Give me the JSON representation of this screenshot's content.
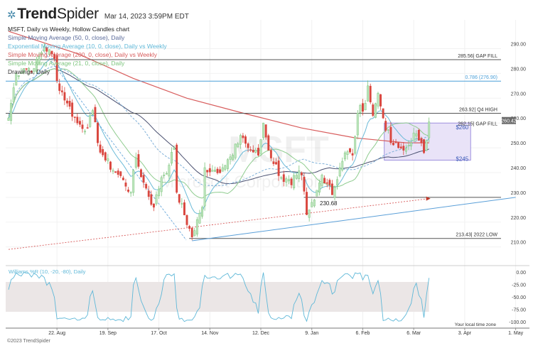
{
  "header": {
    "brand": "TrendSpider",
    "timestamp": "Mar 14, 2023 3:59PM EDT"
  },
  "legend": [
    {
      "label": "MSFT, Daily vs Weekly, Hollow Candles chart",
      "color": "#222222"
    },
    {
      "label": "Simple Moving Average (50, 0, close), Daily",
      "color": "#5a6a9a"
    },
    {
      "label": "Exponential Moving Average (10, 0, close), Daily vs Weekly",
      "color": "#5fb8d8"
    },
    {
      "label": "Simple Moving Average (200, 0, close), Daily vs Weekly",
      "color": "#d85c5c"
    },
    {
      "label": "Simple Moving Average (21, 0, close), Daily",
      "color": "#7cc47c"
    },
    {
      "label": "Drawings, Daily",
      "color": "#333333"
    }
  ],
  "watermark": {
    "symbol": "MSFT",
    "name": "Microsoft Corporation"
  },
  "footer": {
    "copyright": "©2023 TrendSpider",
    "timezone_note": "Your local time zone"
  },
  "chart_data": {
    "type": "candlestick",
    "symbol": "MSFT",
    "ylim": [
      207,
      295
    ],
    "y_ticks": [
      "290.00",
      "280.00",
      "270.00",
      "260.00",
      "250.00",
      "240.00",
      "230.00",
      "220.00",
      "210.00"
    ],
    "x_ticks": [
      {
        "label": "22. Aug",
        "date": "2022-08-22"
      },
      {
        "label": "19. Sep",
        "date": "2022-09-19"
      },
      {
        "label": "17. Oct",
        "date": "2022-10-17"
      },
      {
        "label": "14. Nov",
        "date": "2022-11-14"
      },
      {
        "label": "12. Dec",
        "date": "2022-12-12"
      },
      {
        "label": "9. Jan",
        "date": "2023-01-09"
      },
      {
        "label": "6. Feb",
        "date": "2023-02-06"
      },
      {
        "label": "6. Mar",
        "date": "2023-03-06"
      },
      {
        "label": "3. Apr",
        "date": "2023-04-03"
      },
      {
        "label": "1. May",
        "date": "2023-05-01"
      }
    ],
    "grid": true,
    "last_price": "260.42",
    "approx_closes": [
      [
        "2022-07-26",
        262
      ],
      [
        "2022-07-29",
        280
      ],
      [
        "2022-08-03",
        282
      ],
      [
        "2022-08-09",
        282
      ],
      [
        "2022-08-15",
        291
      ],
      [
        "2022-08-19",
        286
      ],
      [
        "2022-08-22",
        277
      ],
      [
        "2022-08-26",
        268
      ],
      [
        "2022-09-01",
        260
      ],
      [
        "2022-09-07",
        258
      ],
      [
        "2022-09-09",
        265
      ],
      [
        "2022-09-13",
        252
      ],
      [
        "2022-09-16",
        245
      ],
      [
        "2022-09-22",
        240
      ],
      [
        "2022-09-27",
        237
      ],
      [
        "2022-09-30",
        232
      ],
      [
        "2022-10-04",
        246
      ],
      [
        "2022-10-07",
        236
      ],
      [
        "2022-10-13",
        226
      ],
      [
        "2022-10-18",
        238
      ],
      [
        "2022-10-21",
        243
      ],
      [
        "2022-10-25",
        250
      ],
      [
        "2022-10-26",
        232
      ],
      [
        "2022-11-03",
        214
      ],
      [
        "2022-11-09",
        226
      ],
      [
        "2022-11-10",
        242
      ],
      [
        "2022-11-15",
        241
      ],
      [
        "2022-11-21",
        242
      ],
      [
        "2022-11-25",
        247
      ],
      [
        "2022-11-30",
        255
      ],
      [
        "2022-12-01",
        254
      ],
      [
        "2022-12-05",
        250
      ],
      [
        "2022-12-09",
        247
      ],
      [
        "2022-12-13",
        260
      ],
      [
        "2022-12-15",
        249
      ],
      [
        "2022-12-22",
        238
      ],
      [
        "2022-12-28",
        235
      ],
      [
        "2022-12-30",
        239
      ],
      [
        "2023-01-03",
        239
      ],
      [
        "2023-01-05",
        223
      ],
      [
        "2023-01-06",
        225
      ],
      [
        "2023-01-10",
        229
      ],
      [
        "2023-01-13",
        239
      ],
      [
        "2023-01-18",
        235
      ],
      [
        "2023-01-19",
        231
      ],
      [
        "2023-01-24",
        242
      ],
      [
        "2023-01-26",
        248
      ],
      [
        "2023-01-31",
        247
      ],
      [
        "2023-02-02",
        264
      ],
      [
        "2023-02-07",
        268
      ],
      [
        "2023-02-08",
        275
      ],
      [
        "2023-02-10",
        263
      ],
      [
        "2023-02-14",
        272
      ],
      [
        "2023-02-16",
        262
      ],
      [
        "2023-02-21",
        252
      ],
      [
        "2023-02-24",
        250
      ],
      [
        "2023-02-28",
        249
      ],
      [
        "2023-03-02",
        251
      ],
      [
        "2023-03-06",
        256
      ],
      [
        "2023-03-08",
        253
      ],
      [
        "2023-03-10",
        248
      ],
      [
        "2023-03-13",
        253
      ],
      [
        "2023-03-14",
        260.42
      ]
    ],
    "sma200_approx": [
      [
        "2022-07-26",
        297
      ],
      [
        "2022-09-01",
        288
      ],
      [
        "2022-10-03",
        278
      ],
      [
        "2022-11-01",
        270
      ],
      [
        "2022-12-01",
        264
      ],
      [
        "2023-01-03",
        258
      ],
      [
        "2023-02-01",
        254
      ],
      [
        "2023-03-01",
        252
      ],
      [
        "2023-03-14",
        252
      ]
    ],
    "levels": [
      {
        "value": 285.56,
        "label": "285.56| GAP FILL",
        "color": "#555555"
      },
      {
        "value": 276.9,
        "label": "0.786 (276.90)",
        "color": "#4a9fd8"
      },
      {
        "value": 263.92,
        "label": "263.92| Q4 HIGH",
        "color": "#555555"
      },
      {
        "value": 262.15,
        "label": "262.15| GAP FILL",
        "color": "#555555",
        "no_line": true
      },
      {
        "value": 230.0,
        "label": "",
        "color": "#555555",
        "from": "2023-01-05"
      },
      {
        "value": 213.43,
        "label": "213.43| 2022 LOW",
        "color": "#555555",
        "from": "2022-11-03"
      }
    ],
    "annotation_230": "230.68",
    "range_box": {
      "from": "2023-02-17",
      "to": "2023-04-07",
      "top": 260,
      "bottom": 245,
      "top_label": "$260",
      "bottom_label": "$245",
      "color": "#8a7ad8"
    },
    "trendline": {
      "from": [
        "2022-11-03",
        212.5
      ],
      "to": [
        "2023-05-01",
        230
      ]
    },
    "red_dotted": {
      "from": [
        "2022-07-26",
        209
      ],
      "to": [
        "2023-03-14",
        229.5
      ]
    },
    "indicator": {
      "label": "Williams %R (10, -20, -80), Daily",
      "color": "#5fb8d8",
      "y_ticks": [
        "0.00",
        "-25.00",
        "-50.00",
        "-75.00",
        "-100.00"
      ],
      "band": [
        -20,
        -80
      ],
      "period": 10
    }
  }
}
